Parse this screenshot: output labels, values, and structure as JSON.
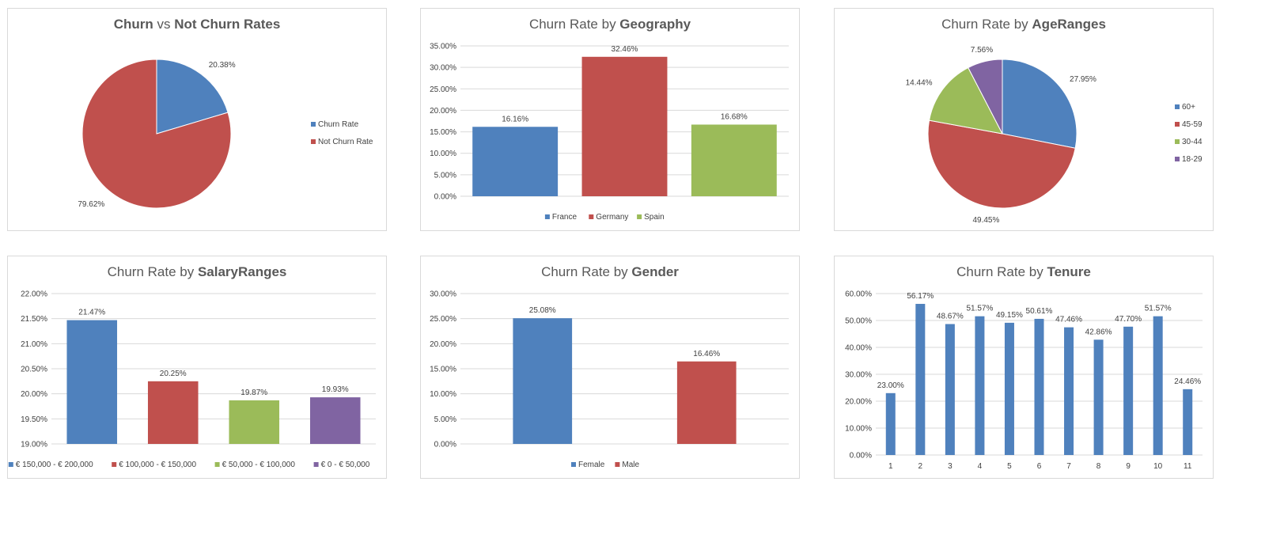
{
  "colors": {
    "blue": "#4f81bd",
    "red": "#c0504d",
    "green": "#9bbb59",
    "purple": "#8064a2",
    "grid": "#d9d9d9",
    "text": "#404040",
    "title": "#595959"
  },
  "chart_data": [
    {
      "id": "churn_vs_not",
      "type": "pie",
      "title_prefix": "",
      "title_bold": "Churn",
      "title_mid": " vs ",
      "title_bold2": "Not Churn Rates",
      "slices": [
        {
          "name": "Churn Rate",
          "value": 20.38,
          "label": "20.38%",
          "color": "#4f81bd"
        },
        {
          "name": "Not Churn Rate",
          "value": 79.62,
          "label": "79.62%",
          "color": "#c0504d"
        }
      ],
      "legend": "right"
    },
    {
      "id": "geography",
      "type": "bar",
      "title_prefix": "Churn Rate by ",
      "title_bold": "Geography",
      "categories": [
        "France",
        "Germany",
        "Spain"
      ],
      "values": [
        16.16,
        32.46,
        16.68
      ],
      "labels": [
        "16.16%",
        "32.46%",
        "16.68%"
      ],
      "colors": [
        "#4f81bd",
        "#c0504d",
        "#9bbb59"
      ],
      "ylim": [
        0,
        35
      ],
      "yticks": [
        "0.00%",
        "5.00%",
        "10.00%",
        "15.00%",
        "20.00%",
        "25.00%",
        "30.00%",
        "35.00%"
      ],
      "legend": "bottom",
      "grid": true
    },
    {
      "id": "age_ranges",
      "type": "pie",
      "title_prefix": "Churn Rate by ",
      "title_bold": "AgeRanges",
      "slices": [
        {
          "name": "60+",
          "value": 27.95,
          "label": "27.95%",
          "color": "#4f81bd"
        },
        {
          "name": "45-59",
          "value": 49.45,
          "label": "49.45%",
          "color": "#c0504d"
        },
        {
          "name": "30-44",
          "value": 14.44,
          "label": "14.44%",
          "color": "#9bbb59"
        },
        {
          "name": "18-29",
          "value": 7.56,
          "label": "7.56%",
          "color": "#8064a2"
        }
      ],
      "legend": "right"
    },
    {
      "id": "salary_ranges",
      "type": "bar",
      "title_prefix": "Churn Rate by ",
      "title_bold": "SalaryRanges",
      "categories": [
        "€ 150,000 - € 200,000",
        "€ 100,000 - € 150,000",
        "€ 50,000 - € 100,000",
        "€ 0 - € 50,000"
      ],
      "values": [
        21.47,
        20.25,
        19.87,
        19.93
      ],
      "labels": [
        "21.47%",
        "20.25%",
        "19.87%",
        "19.93%"
      ],
      "colors": [
        "#4f81bd",
        "#c0504d",
        "#9bbb59",
        "#8064a2"
      ],
      "ylim": [
        19,
        22
      ],
      "yticks": [
        "19.00%",
        "19.50%",
        "20.00%",
        "20.50%",
        "21.00%",
        "21.50%",
        "22.00%"
      ],
      "legend": "bottom",
      "grid": true
    },
    {
      "id": "gender",
      "type": "bar",
      "title_prefix": "Churn Rate by ",
      "title_bold": "Gender",
      "categories": [
        "Female",
        "Male"
      ],
      "values": [
        25.08,
        16.46
      ],
      "labels": [
        "25.08%",
        "16.46%"
      ],
      "colors": [
        "#4f81bd",
        "#c0504d"
      ],
      "ylim": [
        0,
        30
      ],
      "yticks": [
        "0.00%",
        "5.00%",
        "10.00%",
        "15.00%",
        "20.00%",
        "25.00%",
        "30.00%"
      ],
      "legend": "bottom",
      "grid": true
    },
    {
      "id": "tenure",
      "type": "bar",
      "title_prefix": "Churn Rate by ",
      "title_bold": "Tenure",
      "categories": [
        "1",
        "2",
        "3",
        "4",
        "5",
        "6",
        "7",
        "8",
        "9",
        "10",
        "11"
      ],
      "values": [
        23.0,
        56.17,
        48.67,
        51.57,
        49.15,
        50.61,
        47.46,
        42.86,
        47.7,
        51.57,
        24.46
      ],
      "labels": [
        "23.00%",
        "56.17%",
        "48.67%",
        "51.57%",
        "49.15%",
        "50.61%",
        "47.46%",
        "42.86%",
        "47.70%",
        "51.57%",
        "24.46%"
      ],
      "colors": [
        "#4f81bd"
      ],
      "ylim": [
        0,
        60
      ],
      "yticks": [
        "0.00%",
        "10.00%",
        "20.00%",
        "30.00%",
        "40.00%",
        "50.00%",
        "60.00%"
      ],
      "legend": "none",
      "grid": true
    }
  ]
}
